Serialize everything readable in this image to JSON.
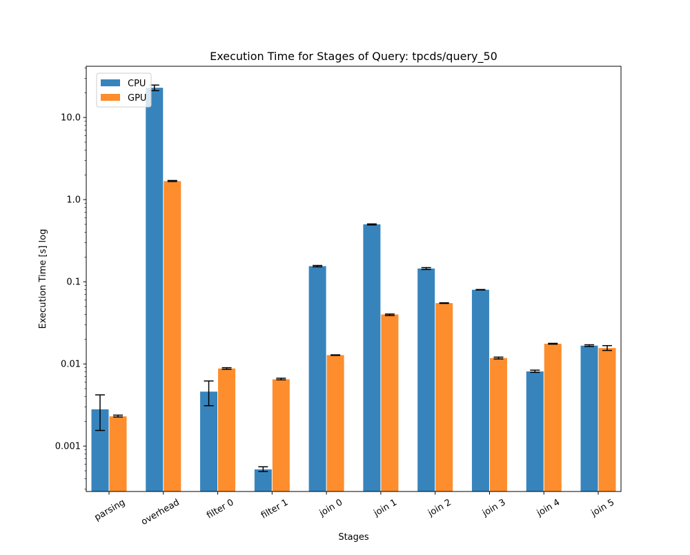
{
  "chart_data": {
    "type": "bar",
    "title": "Execution Time for Stages of Query: tpcds/query_50",
    "xlabel": "Stages",
    "ylabel": "Execution Time [s] log",
    "yscale": "log",
    "ylim": [
      0.00028,
      42
    ],
    "yticks": [
      0.001,
      0.01,
      0.1,
      1.0,
      10.0
    ],
    "ytick_labels": [
      "0.001",
      "0.01",
      "0.1",
      "1.0",
      "10.0"
    ],
    "categories": [
      "parsing",
      "overhead",
      "filter 0",
      "filter 1",
      "join 0",
      "join 1",
      "join 2",
      "join 3",
      "join 4",
      "join 5"
    ],
    "series": [
      {
        "name": "CPU",
        "color": "#3784bd",
        "values": [
          0.0028,
          23.0,
          0.0046,
          0.00052,
          0.155,
          0.5,
          0.145,
          0.08,
          0.0081,
          0.0167
        ],
        "err_low": [
          0.00155,
          21.2,
          0.0031,
          0.00049,
          0.152,
          0.492,
          0.141,
          0.0795,
          0.0079,
          0.0163
        ],
        "err_high": [
          0.0042,
          24.8,
          0.0062,
          0.00056,
          0.158,
          0.506,
          0.149,
          0.0805,
          0.0084,
          0.0171
        ]
      },
      {
        "name": "GPU",
        "color": "#fd8d2d",
        "values": [
          0.0023,
          1.68,
          0.0088,
          0.0065,
          0.0128,
          0.04,
          0.055,
          0.0118,
          0.0176,
          0.0156
        ],
        "err_low": [
          0.00226,
          1.66,
          0.0086,
          0.0064,
          0.0127,
          0.0388,
          0.0545,
          0.0115,
          0.0174,
          0.0146
        ],
        "err_high": [
          0.00238,
          1.71,
          0.009,
          0.0067,
          0.0129,
          0.0405,
          0.0555,
          0.0121,
          0.0178,
          0.0167
        ]
      }
    ],
    "legend_position": "top-left",
    "grid": false
  }
}
